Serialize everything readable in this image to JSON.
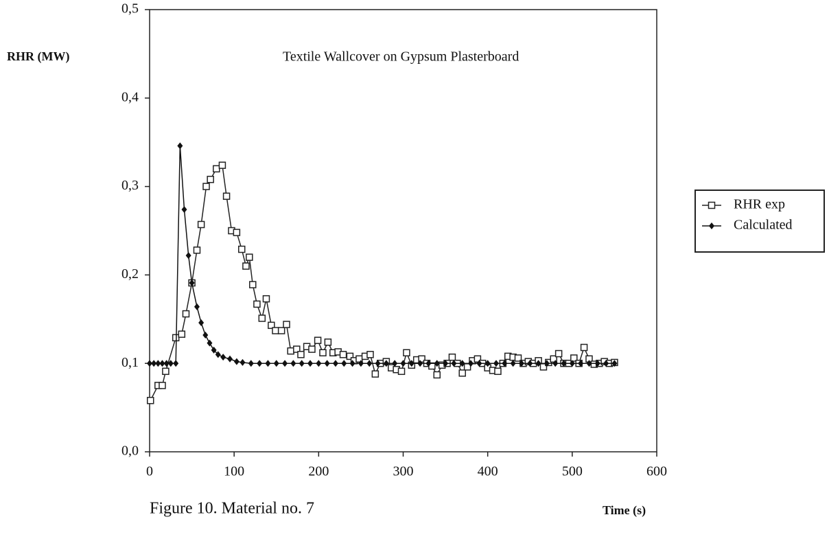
{
  "chart_data": {
    "type": "line",
    "title": "Textile Wallcover on Gypsum Plasterboard",
    "y_label": "RHR (MW)",
    "x_label": "Time (s)",
    "caption": "Figure 10.  Material no. 7",
    "xlim": [
      0,
      600
    ],
    "xticks": [
      0,
      100,
      200,
      300,
      400,
      500,
      600
    ],
    "ylim": [
      0,
      0.5
    ],
    "yticks": [
      {
        "value": 0,
        "label": "0,0"
      },
      {
        "value": 0.1,
        "label": "0,1"
      },
      {
        "value": 0.2,
        "label": "0,2"
      },
      {
        "value": 0.3,
        "label": "0,3"
      },
      {
        "value": 0.4,
        "label": "0,4"
      },
      {
        "value": 0.5,
        "label": "0,5"
      }
    ],
    "legend": "right",
    "series": [
      {
        "name": "RHR exp",
        "color": "#222",
        "marker": "square",
        "x": [
          1,
          10,
          15,
          19,
          31,
          38,
          43,
          50,
          56,
          61,
          67,
          72,
          79,
          86,
          91,
          97,
          103,
          109,
          114,
          118,
          122,
          127,
          133,
          138,
          144,
          149,
          156,
          162,
          167,
          174,
          179,
          186,
          192,
          199,
          205,
          211,
          217,
          223,
          229,
          237,
          242,
          248,
          255,
          261,
          267,
          273,
          280,
          286,
          292,
          298,
          304,
          310,
          316,
          322,
          328,
          334,
          340,
          346,
          352,
          358,
          364,
          370,
          376,
          382,
          388,
          394,
          400,
          406,
          412,
          418,
          424,
          430,
          436,
          442,
          448,
          454,
          460,
          466,
          472,
          478,
          484,
          490,
          496,
          502,
          508,
          514,
          520,
          526,
          532,
          538,
          544,
          550
        ],
        "values": [
          0.058,
          0.075,
          0.075,
          0.091,
          0.129,
          0.133,
          0.156,
          0.191,
          0.228,
          0.257,
          0.3,
          0.308,
          0.32,
          0.324,
          0.289,
          0.25,
          0.248,
          0.229,
          0.21,
          0.22,
          0.189,
          0.167,
          0.151,
          0.173,
          0.143,
          0.137,
          0.137,
          0.144,
          0.114,
          0.116,
          0.11,
          0.119,
          0.116,
          0.126,
          0.112,
          0.124,
          0.112,
          0.113,
          0.11,
          0.108,
          0.103,
          0.105,
          0.108,
          0.11,
          0.088,
          0.1,
          0.102,
          0.095,
          0.093,
          0.091,
          0.112,
          0.098,
          0.104,
          0.105,
          0.1,
          0.097,
          0.087,
          0.098,
          0.1,
          0.107,
          0.1,
          0.089,
          0.096,
          0.103,
          0.105,
          0.1,
          0.095,
          0.092,
          0.091,
          0.1,
          0.108,
          0.107,
          0.106,
          0.1,
          0.102,
          0.1,
          0.103,
          0.096,
          0.101,
          0.105,
          0.111,
          0.1,
          0.1,
          0.106,
          0.1,
          0.118,
          0.105,
          0.099,
          0.1,
          0.102,
          0.1,
          0.101
        ]
      },
      {
        "name": "Calculated",
        "color": "#111",
        "marker": "diamond",
        "x": [
          0,
          5,
          10,
          15,
          20,
          25,
          31,
          36,
          41,
          46,
          50,
          56,
          61,
          66,
          71,
          76,
          81,
          87,
          95,
          103,
          110,
          120,
          130,
          140,
          150,
          160,
          170,
          180,
          190,
          200,
          210,
          220,
          230,
          240,
          250,
          260,
          270,
          280,
          290,
          300,
          310,
          320,
          330,
          340,
          350,
          360,
          370,
          380,
          390,
          400,
          410,
          420,
          430,
          440,
          450,
          460,
          470,
          480,
          490,
          500,
          510,
          520,
          530,
          540,
          550
        ],
        "values": [
          0.1,
          0.1,
          0.1,
          0.1,
          0.1,
          0.1,
          0.1,
          0.346,
          0.274,
          0.222,
          0.191,
          0.164,
          0.146,
          0.132,
          0.123,
          0.115,
          0.11,
          0.107,
          0.105,
          0.102,
          0.101,
          0.1,
          0.1,
          0.1,
          0.1,
          0.1,
          0.1,
          0.1,
          0.1,
          0.1,
          0.1,
          0.1,
          0.1,
          0.1,
          0.1,
          0.1,
          0.1,
          0.1,
          0.1,
          0.1,
          0.1,
          0.1,
          0.1,
          0.1,
          0.1,
          0.1,
          0.1,
          0.1,
          0.1,
          0.1,
          0.1,
          0.1,
          0.1,
          0.1,
          0.1,
          0.1,
          0.1,
          0.1,
          0.1,
          0.1,
          0.1,
          0.1,
          0.1,
          0.1,
          0.1
        ]
      }
    ]
  }
}
